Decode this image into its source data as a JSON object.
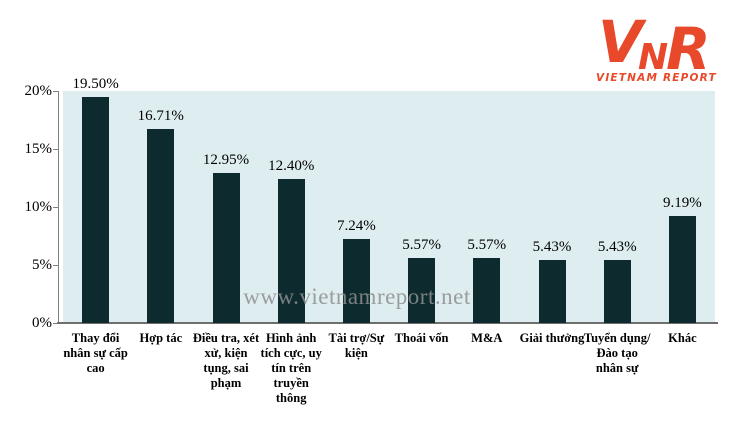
{
  "logo": {
    "v": "V",
    "n": "N",
    "r": "R",
    "caption": "VIETNAM REPORT",
    "color": "#E8492B"
  },
  "watermark": "www.vietnamreport.net",
  "chart_data": {
    "type": "bar",
    "title": "",
    "xlabel": "",
    "ylabel": "",
    "categories": [
      "Thay đổi nhân sự cấp cao",
      "Hợp tác",
      "Điều tra, xét xử, kiện tụng, sai phạm",
      "Hình ảnh tích cực, uy tín trên truyền thông",
      "Tài trợ/Sự kiện",
      "Thoái vốn",
      "M&A",
      "Giải thưởng",
      "Tuyển dụng/Đào tạo nhân sự",
      "Khác"
    ],
    "values": [
      19.5,
      16.71,
      12.95,
      12.4,
      7.24,
      5.57,
      5.57,
      5.43,
      5.43,
      9.19
    ],
    "value_labels": [
      "19.50%",
      "16.71%",
      "12.95%",
      "12.40%",
      "7.24%",
      "5.57%",
      "5.57%",
      "5.43%",
      "5.43%",
      "9.19%"
    ],
    "ylim": [
      0,
      20
    ],
    "yticks": [
      "0%",
      "5%",
      "10%",
      "15%",
      "20%"
    ],
    "grid": false,
    "legend": "none",
    "bar_color": "#0D2B2F",
    "plot_bg": "#DDEDF0"
  }
}
